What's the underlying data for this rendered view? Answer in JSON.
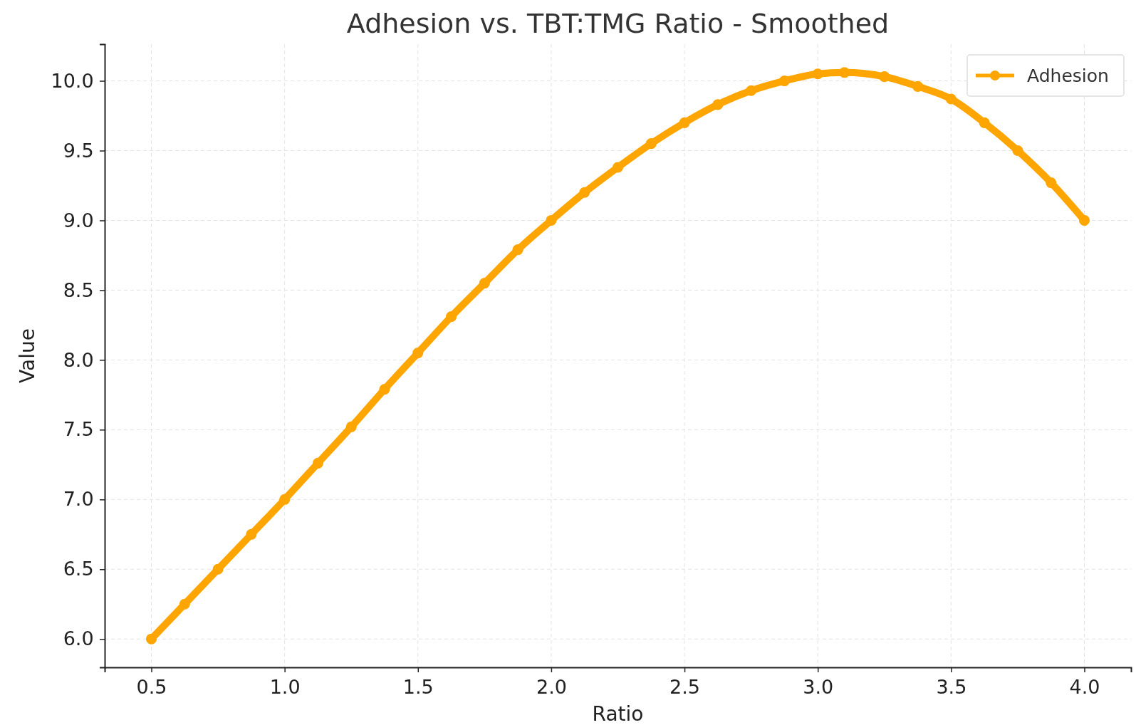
{
  "chart_data": {
    "type": "line",
    "title": "Adhesion vs. TBT:TMG Ratio - Smoothed",
    "xlabel": "Ratio",
    "ylabel": "Value",
    "x": [
      0.5,
      0.625,
      0.75,
      0.875,
      1.0,
      1.125,
      1.25,
      1.375,
      1.5,
      1.625,
      1.75,
      1.875,
      2.0,
      2.125,
      2.25,
      2.375,
      2.5,
      2.625,
      2.75,
      2.875,
      3.0,
      3.1,
      3.25,
      3.375,
      3.5,
      3.625,
      3.75,
      3.875,
      4.0
    ],
    "series": [
      {
        "name": "Adhesion",
        "color": "#ffa500",
        "values": [
          6.0,
          6.25,
          6.5,
          6.75,
          7.0,
          7.26,
          7.52,
          7.79,
          8.05,
          8.31,
          8.55,
          8.79,
          9.0,
          9.2,
          9.38,
          9.55,
          9.7,
          9.83,
          9.93,
          10.0,
          10.05,
          10.06,
          10.03,
          9.96,
          9.87,
          9.7,
          9.5,
          9.27,
          9.0
        ]
      }
    ],
    "xlim": [
      0.325,
      4.175
    ],
    "xticks": [
      {
        "value": 0.5,
        "label": "0.5"
      },
      {
        "value": 1.0,
        "label": "1.0"
      },
      {
        "value": 1.5,
        "label": "1.5"
      },
      {
        "value": 2.0,
        "label": "2.0"
      },
      {
        "value": 2.5,
        "label": "2.5"
      },
      {
        "value": 3.0,
        "label": "3.0"
      },
      {
        "value": 3.5,
        "label": "3.5"
      },
      {
        "value": 4.0,
        "label": "4.0"
      }
    ],
    "ylim": [
      5.797,
      10.263
    ],
    "yticks": [
      {
        "value": 6.0,
        "label": "6.0"
      },
      {
        "value": 6.5,
        "label": "6.5"
      },
      {
        "value": 7.0,
        "label": "7.0"
      },
      {
        "value": 7.5,
        "label": "7.5"
      },
      {
        "value": 8.0,
        "label": "8.0"
      },
      {
        "value": 8.5,
        "label": "8.5"
      },
      {
        "value": 9.0,
        "label": "9.0"
      },
      {
        "value": 9.5,
        "label": "9.5"
      },
      {
        "value": 10.0,
        "label": "10.0"
      }
    ],
    "grid": true,
    "legend": "top right",
    "marker": "circle",
    "line_style": "solid"
  }
}
